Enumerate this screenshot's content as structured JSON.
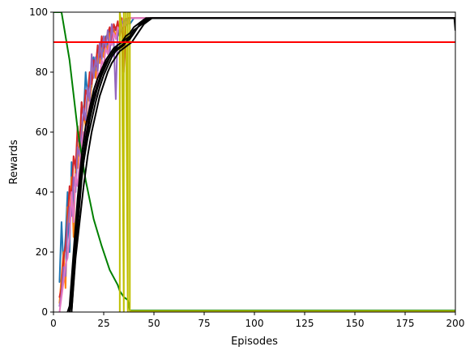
{
  "chart_data": {
    "type": "line",
    "xlabel": "Episodes",
    "ylabel": "Rewards",
    "xlim": [
      0,
      200
    ],
    "ylim": [
      0,
      100
    ],
    "xticks": [
      0,
      25,
      50,
      75,
      100,
      125,
      150,
      175,
      200
    ],
    "yticks": [
      0,
      20,
      40,
      60,
      80,
      100
    ],
    "grid": false,
    "legend": "none",
    "reference_line": {
      "y": 90,
      "color": "#ff0000"
    },
    "colors": {
      "blue": "#1f77b4",
      "orange": "#ff7f0e",
      "red": "#d62728",
      "purple": "#9467bd",
      "pink": "#e377c2",
      "black": "#000000",
      "green": "#008000",
      "yellow": "#bfbf00"
    },
    "series": [
      {
        "color": "#1f77b4",
        "x": [
          3,
          4,
          5,
          6,
          7,
          8,
          9,
          10,
          11,
          12,
          13,
          14,
          15,
          16,
          17,
          18,
          19,
          20,
          21,
          22,
          23,
          24,
          25,
          26,
          27,
          28,
          29,
          30,
          31,
          32,
          33,
          34,
          35,
          36,
          37,
          38,
          40,
          45,
          200
        ],
        "y": [
          10,
          30,
          15,
          25,
          40,
          20,
          50,
          35,
          45,
          60,
          55,
          70,
          65,
          80,
          72,
          78,
          75,
          85,
          80,
          88,
          84,
          90,
          86,
          92,
          88,
          94,
          90,
          93,
          95,
          92,
          96,
          94,
          97,
          95,
          98,
          96,
          98,
          98,
          98
        ]
      },
      {
        "color": "#ff7f0e",
        "x": [
          3,
          4,
          5,
          6,
          7,
          8,
          9,
          10,
          11,
          12,
          13,
          14,
          15,
          16,
          17,
          18,
          19,
          20,
          21,
          22,
          23,
          24,
          25,
          26,
          27,
          28,
          29,
          30,
          31,
          32,
          33,
          34,
          35,
          36,
          37,
          38,
          40,
          45,
          200
        ],
        "y": [
          3,
          12,
          20,
          8,
          35,
          30,
          45,
          25,
          50,
          48,
          60,
          58,
          66,
          62,
          72,
          70,
          76,
          82,
          78,
          86,
          83,
          88,
          85,
          90,
          87,
          93,
          91,
          94,
          92,
          96,
          93,
          97,
          95,
          98,
          96,
          98,
          98,
          98,
          98
        ]
      },
      {
        "color": "#d62728",
        "x": [
          3,
          4,
          5,
          6,
          7,
          8,
          9,
          10,
          11,
          12,
          13,
          14,
          15,
          16,
          17,
          18,
          19,
          20,
          21,
          22,
          23,
          24,
          25,
          26,
          27,
          28,
          29,
          30,
          31,
          32,
          33,
          34,
          35,
          36,
          37,
          38,
          40,
          45,
          200
        ],
        "y": [
          5,
          8,
          18,
          22,
          30,
          42,
          38,
          52,
          48,
          62,
          55,
          70,
          64,
          74,
          72,
          80,
          76,
          84,
          82,
          89,
          85,
          92,
          88,
          91,
          93,
          95,
          90,
          96,
          94,
          97,
          92,
          98,
          80,
          97,
          98,
          98,
          98,
          98,
          98
        ]
      },
      {
        "color": "#9467bd",
        "x": [
          3,
          4,
          5,
          6,
          7,
          8,
          9,
          10,
          11,
          12,
          13,
          14,
          15,
          16,
          17,
          18,
          19,
          20,
          21,
          22,
          23,
          24,
          25,
          26,
          27,
          28,
          29,
          30,
          31,
          32,
          33,
          34,
          35,
          36,
          37,
          38,
          40,
          45,
          200
        ],
        "y": [
          2,
          6,
          15,
          12,
          28,
          35,
          32,
          45,
          40,
          55,
          52,
          60,
          68,
          64,
          75,
          70,
          86,
          78,
          85,
          80,
          90,
          84,
          92,
          88,
          94,
          86,
          96,
          90,
          71,
          95,
          93,
          97,
          96,
          98,
          97,
          98,
          98,
          98,
          98
        ]
      },
      {
        "color": "#e377c2",
        "x": [
          3,
          4,
          5,
          6,
          7,
          8,
          9,
          10,
          11,
          12,
          13,
          14,
          15,
          16,
          17,
          18,
          19,
          20,
          21,
          22,
          23,
          24,
          25,
          26,
          27,
          28,
          29,
          30,
          31,
          32,
          33,
          34,
          35,
          36,
          37,
          38,
          40,
          45,
          200
        ],
        "y": [
          0,
          5,
          10,
          16,
          18,
          25,
          40,
          30,
          46,
          42,
          50,
          56,
          60,
          58,
          64,
          70,
          68,
          74,
          72,
          80,
          78,
          84,
          82,
          88,
          86,
          90,
          89,
          93,
          91,
          95,
          94,
          96,
          95,
          97,
          96,
          98,
          98,
          98,
          98
        ]
      },
      {
        "color": "#008000",
        "x": [
          0,
          4,
          8,
          12,
          16,
          20,
          24,
          28,
          32,
          33,
          34,
          35,
          36,
          37,
          38,
          40,
          200
        ],
        "y": [
          100,
          100,
          84,
          61,
          44,
          31,
          22,
          14,
          9,
          7,
          6,
          5,
          4.5,
          4,
          0.5,
          0.5,
          0.5
        ]
      },
      {
        "color": "#bfbf00",
        "x": [
          33,
          33,
          34,
          35,
          35,
          36,
          37,
          37,
          38,
          38,
          200
        ],
        "y": [
          0,
          100,
          95,
          0,
          100,
          100,
          0,
          100,
          100,
          0.3,
          0.3
        ]
      },
      {
        "color": "#000000",
        "x": [
          7,
          8,
          10,
          12,
          14,
          16,
          18,
          20,
          22,
          24,
          26,
          28,
          30,
          32,
          34,
          36,
          38,
          40,
          42,
          44,
          46,
          200
        ],
        "y": [
          0,
          2,
          20,
          38,
          52,
          62,
          68,
          74,
          78,
          81,
          84,
          86,
          88,
          89,
          90,
          92,
          93,
          95,
          96,
          97,
          98,
          98
        ]
      },
      {
        "color": "#000000",
        "x": [
          8,
          9,
          11,
          13,
          15,
          17,
          19,
          21,
          23,
          25,
          27,
          29,
          31,
          33,
          35,
          37,
          39,
          41,
          43,
          45,
          47,
          200
        ],
        "y": [
          0,
          4,
          24,
          40,
          50,
          58,
          64,
          70,
          75,
          79,
          82,
          85,
          87,
          88,
          89,
          91,
          92,
          94,
          96,
          97,
          98,
          98
        ]
      },
      {
        "color": "#000000",
        "x": [
          8,
          10,
          12,
          14,
          16,
          18,
          20,
          22,
          24,
          26,
          28,
          30,
          32,
          34,
          36,
          38,
          40,
          42,
          44,
          46,
          48,
          200
        ],
        "y": [
          0,
          15,
          33,
          48,
          58,
          66,
          72,
          76,
          80,
          83,
          85,
          87,
          89,
          90,
          91,
          92,
          94,
          95,
          96,
          97,
          98,
          98
        ]
      },
      {
        "color": "#000000",
        "x": [
          9,
          11,
          13,
          15,
          17,
          19,
          21,
          23,
          25,
          27,
          29,
          31,
          33,
          35,
          37,
          39,
          41,
          43,
          45,
          47,
          49,
          200
        ],
        "y": [
          0,
          18,
          30,
          42,
          52,
          60,
          66,
          72,
          76,
          80,
          83,
          85,
          87,
          88,
          89,
          90,
          92,
          94,
          96,
          97,
          98,
          98
        ]
      },
      {
        "color": "#000000",
        "x": [
          9,
          10,
          12,
          14,
          16,
          18,
          20,
          22,
          24,
          26,
          28,
          30,
          32,
          34,
          36,
          38,
          40,
          42,
          44,
          46,
          48,
          199.5,
          200
        ],
        "y": [
          0,
          10,
          28,
          44,
          56,
          64,
          70,
          75,
          79,
          82,
          85,
          87,
          88,
          89,
          90,
          91,
          93,
          95,
          96,
          97,
          98,
          98,
          94
        ]
      }
    ]
  }
}
